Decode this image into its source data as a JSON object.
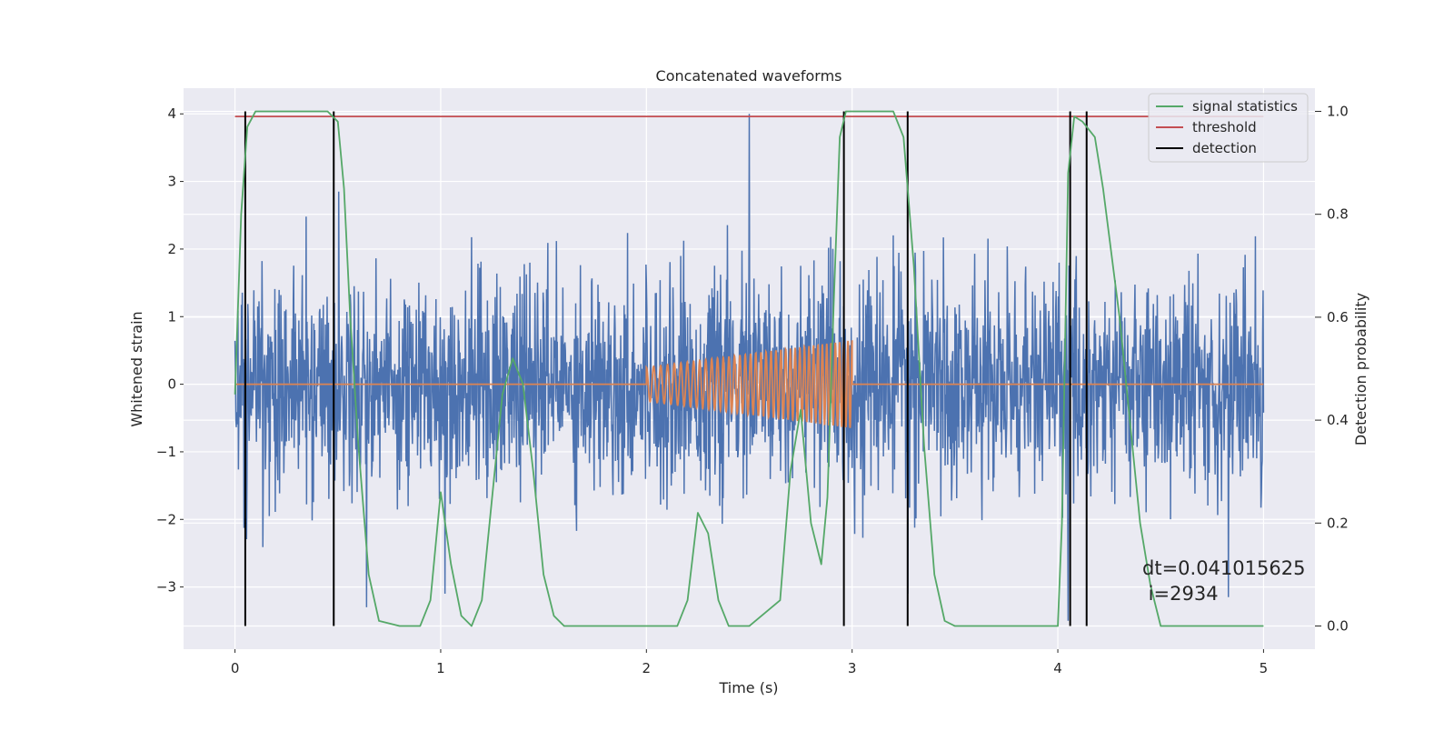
{
  "chart_data": {
    "type": "line",
    "title": "Concatenated waveforms",
    "xlabel": "Time (s)",
    "ylabel": "Whitened strain",
    "y2label": "Detection probability",
    "xlim": [
      -0.25,
      5.25
    ],
    "ylim": [
      -3.92,
      4.38
    ],
    "y2lim": [
      -0.045,
      1.045
    ],
    "xticks": [
      0,
      1,
      2,
      3,
      4,
      5
    ],
    "yticks": [
      -3,
      -2,
      -1,
      0,
      1,
      2,
      3,
      4
    ],
    "y2ticks": [
      0.0,
      0.2,
      0.4,
      0.6,
      0.8,
      1.0
    ],
    "xtick_labels": [
      "0",
      "1",
      "2",
      "3",
      "4",
      "5"
    ],
    "ytick_labels": [
      "−3",
      "−2",
      "−1",
      "0",
      "1",
      "2",
      "3",
      "4"
    ],
    "y2tick_labels": [
      "0.0",
      "0.2",
      "0.4",
      "0.6",
      "0.8",
      "1.0"
    ],
    "grid": true,
    "legend_position": "top-right",
    "annotation": [
      "dt=0.041015625",
      " i=2934"
    ],
    "colors": {
      "background": "#eaeaf2",
      "grid": "#ffffff",
      "strain": "#4c72b0",
      "template": "#dd8452",
      "signal_statistics": "#55a868",
      "threshold": "#c44e52",
      "detection": "#000000"
    },
    "series": [
      {
        "name": "",
        "axis": "left",
        "kind": "noise",
        "x_range": [
          0,
          5
        ],
        "amplitude_envelope": [
          -3.3,
          4.0
        ],
        "note_peaks": [
          [
            2.5,
            4.0
          ],
          [
            0.64,
            -3.3
          ],
          [
            1.02,
            -3.1
          ],
          [
            3.27,
            -3.1
          ],
          [
            4.05,
            -3.5
          ],
          [
            4.83,
            -3.15
          ]
        ]
      },
      {
        "name": "",
        "axis": "left",
        "kind": "chirp",
        "x": [
          0,
          2.0,
          2.0,
          3.0,
          3.0,
          5.0
        ],
        "y_envelope": [
          0,
          0,
          0.25,
          0.65,
          0,
          0
        ]
      },
      {
        "name": "signal statistics",
        "axis": "right",
        "x": [
          0.0,
          0.03,
          0.06,
          0.1,
          0.2,
          0.45,
          0.5,
          0.53,
          0.56,
          0.6,
          0.65,
          0.7,
          0.8,
          0.9,
          0.95,
          1.0,
          1.05,
          1.1,
          1.15,
          1.2,
          1.25,
          1.3,
          1.35,
          1.4,
          1.45,
          1.5,
          1.55,
          1.6,
          1.7,
          2.0,
          2.15,
          2.2,
          2.25,
          2.3,
          2.35,
          2.4,
          2.5,
          2.65,
          2.7,
          2.75,
          2.8,
          2.85,
          2.88,
          2.91,
          2.94,
          2.97,
          3.0,
          3.2,
          3.25,
          3.3,
          3.35,
          3.4,
          3.45,
          3.5,
          3.6,
          4.0,
          4.02,
          4.05,
          4.08,
          4.12,
          4.18,
          4.22,
          4.3,
          4.35,
          4.4,
          4.45,
          4.5,
          4.6,
          5.0
        ],
        "y": [
          0.45,
          0.8,
          0.97,
          1.0,
          1.0,
          1.0,
          0.98,
          0.85,
          0.6,
          0.35,
          0.1,
          0.01,
          0.0,
          0.0,
          0.05,
          0.26,
          0.12,
          0.02,
          0.0,
          0.05,
          0.25,
          0.45,
          0.52,
          0.47,
          0.3,
          0.1,
          0.02,
          0.0,
          0.0,
          0.0,
          0.0,
          0.05,
          0.22,
          0.18,
          0.05,
          0.0,
          0.0,
          0.05,
          0.3,
          0.42,
          0.2,
          0.12,
          0.25,
          0.62,
          0.95,
          1.0,
          1.0,
          1.0,
          0.95,
          0.7,
          0.35,
          0.1,
          0.01,
          0.0,
          0.0,
          0.0,
          0.2,
          0.88,
          0.99,
          0.98,
          0.95,
          0.85,
          0.6,
          0.4,
          0.2,
          0.08,
          0.0,
          0.0,
          0.0
        ]
      },
      {
        "name": "threshold",
        "axis": "right",
        "x": [
          0,
          5
        ],
        "y": [
          0.99,
          0.99
        ]
      },
      {
        "name": "detection",
        "axis": "right",
        "kind": "vlines",
        "x": [
          0.05,
          0.48,
          2.96,
          3.27,
          4.06,
          4.14
        ],
        "ymin": 0.0,
        "ymax": 1.0
      }
    ]
  }
}
